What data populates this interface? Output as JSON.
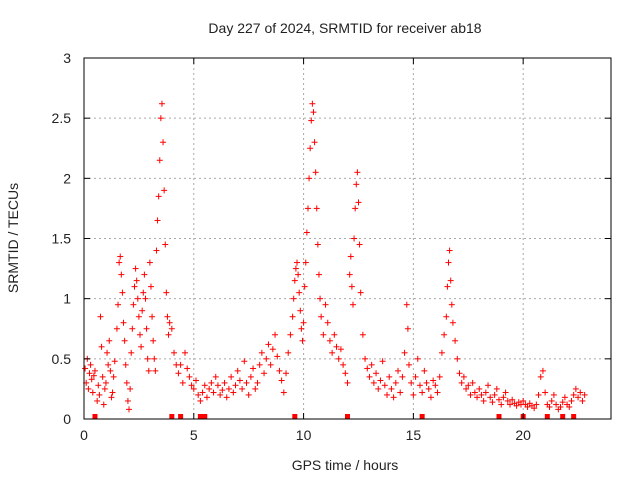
{
  "chart_data": {
    "type": "scatter",
    "title": "Day 227 of 2024, SRMTID for receiver ab18",
    "xlabel": "GPS time / hours",
    "ylabel": "SRMTID / TECUs",
    "xlim": [
      0,
      24
    ],
    "ylim": [
      0,
      3
    ],
    "x_ticks": [
      0,
      5,
      10,
      15,
      20
    ],
    "x_tick_labels": [
      "0",
      "5",
      "10",
      "15",
      "20"
    ],
    "y_ticks": [
      0,
      0.5,
      1,
      1.5,
      2,
      2.5,
      3
    ],
    "y_tick_labels": [
      "0",
      "0.5",
      "1",
      "1.5",
      "2",
      "2.5",
      "3"
    ],
    "grid": true,
    "marker": "+",
    "color": "#ff0000",
    "series": [
      {
        "name": "SRMTID",
        "points": [
          [
            0.05,
            0.42
          ],
          [
            0.1,
            0.3
          ],
          [
            0.15,
            0.5
          ],
          [
            0.2,
            0.25
          ],
          [
            0.25,
            0.38
          ],
          [
            0.3,
            0.45
          ],
          [
            0.35,
            0.33
          ],
          [
            0.4,
            0.22
          ],
          [
            0.45,
            0.36
          ],
          [
            0.5,
            0.4
          ],
          [
            0.6,
            0.15
          ],
          [
            0.65,
            0.28
          ],
          [
            0.7,
            0.2
          ],
          [
            0.75,
            0.85
          ],
          [
            0.8,
            0.6
          ],
          [
            0.85,
            0.35
          ],
          [
            0.9,
            0.12
          ],
          [
            0.95,
            0.25
          ],
          [
            1.0,
            0.3
          ],
          [
            1.05,
            0.55
          ],
          [
            1.1,
            0.45
          ],
          [
            1.15,
            0.65
          ],
          [
            1.2,
            0.4
          ],
          [
            1.25,
            0.18
          ],
          [
            1.3,
            0.22
          ],
          [
            1.35,
            0.35
          ],
          [
            1.4,
            0.48
          ],
          [
            1.5,
            0.75
          ],
          [
            1.55,
            0.95
          ],
          [
            1.6,
            1.3
          ],
          [
            1.65,
            1.35
          ],
          [
            1.7,
            1.2
          ],
          [
            1.75,
            1.05
          ],
          [
            1.8,
            0.8
          ],
          [
            1.85,
            0.65
          ],
          [
            1.9,
            0.45
          ],
          [
            1.95,
            0.3
          ],
          [
            2.0,
            0.15
          ],
          [
            2.05,
            0.08
          ],
          [
            2.1,
            0.25
          ],
          [
            2.15,
            0.55
          ],
          [
            2.2,
            0.75
          ],
          [
            2.25,
            0.95
          ],
          [
            2.3,
            1.1
          ],
          [
            2.35,
            1.25
          ],
          [
            2.4,
            1.15
          ],
          [
            2.45,
            1.0
          ],
          [
            2.5,
            0.85
          ],
          [
            2.55,
            0.7
          ],
          [
            2.6,
            0.6
          ],
          [
            2.65,
            0.9
          ],
          [
            2.7,
            1.05
          ],
          [
            2.75,
            1.2
          ],
          [
            2.8,
            1.0
          ],
          [
            2.85,
            0.75
          ],
          [
            2.9,
            0.5
          ],
          [
            2.95,
            0.4
          ],
          [
            3.0,
            1.3
          ],
          [
            3.05,
            1.1
          ],
          [
            3.1,
            0.85
          ],
          [
            3.15,
            0.65
          ],
          [
            3.2,
            0.5
          ],
          [
            3.25,
            0.4
          ],
          [
            3.3,
            1.4
          ],
          [
            3.35,
            1.65
          ],
          [
            3.4,
            1.85
          ],
          [
            3.45,
            2.15
          ],
          [
            3.5,
            2.5
          ],
          [
            3.55,
            2.62
          ],
          [
            3.6,
            2.3
          ],
          [
            3.65,
            1.9
          ],
          [
            3.7,
            1.45
          ],
          [
            3.75,
            1.05
          ],
          [
            3.8,
            0.85
          ],
          [
            3.85,
            0.7
          ],
          [
            3.9,
            0.8
          ],
          [
            4.0,
            0.75
          ],
          [
            4.1,
            0.55
          ],
          [
            4.2,
            0.45
          ],
          [
            4.3,
            0.38
          ],
          [
            4.4,
            0.45
          ],
          [
            4.5,
            0.3
          ],
          [
            4.6,
            0.55
          ],
          [
            4.7,
            0.42
          ],
          [
            4.8,
            0.35
          ],
          [
            4.9,
            0.28
          ],
          [
            5.0,
            0.25
          ],
          [
            5.1,
            0.32
          ],
          [
            5.2,
            0.2
          ],
          [
            5.3,
            0.15
          ],
          [
            5.4,
            0.22
          ],
          [
            5.5,
            0.28
          ],
          [
            5.6,
            0.18
          ],
          [
            5.7,
            0.25
          ],
          [
            5.8,
            0.3
          ],
          [
            5.9,
            0.22
          ],
          [
            6.0,
            0.35
          ],
          [
            6.1,
            0.28
          ],
          [
            6.2,
            0.2
          ],
          [
            6.3,
            0.24
          ],
          [
            6.4,
            0.3
          ],
          [
            6.5,
            0.18
          ],
          [
            6.6,
            0.25
          ],
          [
            6.7,
            0.35
          ],
          [
            6.8,
            0.22
          ],
          [
            6.9,
            0.28
          ],
          [
            7.0,
            0.4
          ],
          [
            7.1,
            0.32
          ],
          [
            7.2,
            0.25
          ],
          [
            7.3,
            0.48
          ],
          [
            7.4,
            0.3
          ],
          [
            7.5,
            0.2
          ],
          [
            7.6,
            0.35
          ],
          [
            7.7,
            0.42
          ],
          [
            7.8,
            0.25
          ],
          [
            7.9,
            0.3
          ],
          [
            8.0,
            0.45
          ],
          [
            8.1,
            0.55
          ],
          [
            8.2,
            0.38
          ],
          [
            8.3,
            0.5
          ],
          [
            8.4,
            0.62
          ],
          [
            8.5,
            0.45
          ],
          [
            8.6,
            0.58
          ],
          [
            8.7,
            0.7
          ],
          [
            8.8,
            0.52
          ],
          [
            8.9,
            0.4
          ],
          [
            9.0,
            0.32
          ],
          [
            9.1,
            0.22
          ],
          [
            9.2,
            0.38
          ],
          [
            9.3,
            0.55
          ],
          [
            9.4,
            0.7
          ],
          [
            9.5,
            0.85
          ],
          [
            9.55,
            1.0
          ],
          [
            9.6,
            1.15
          ],
          [
            9.65,
            1.25
          ],
          [
            9.7,
            1.3
          ],
          [
            9.75,
            1.2
          ],
          [
            9.8,
            1.05
          ],
          [
            9.85,
            0.9
          ],
          [
            9.9,
            0.75
          ],
          [
            9.95,
            0.65
          ],
          [
            10.0,
            0.8
          ],
          [
            10.05,
            1.1
          ],
          [
            10.1,
            1.3
          ],
          [
            10.15,
            1.55
          ],
          [
            10.2,
            1.75
          ],
          [
            10.25,
            2.0
          ],
          [
            10.3,
            2.25
          ],
          [
            10.35,
            2.48
          ],
          [
            10.4,
            2.62
          ],
          [
            10.45,
            2.55
          ],
          [
            10.5,
            2.3
          ],
          [
            10.55,
            2.05
          ],
          [
            10.6,
            1.75
          ],
          [
            10.65,
            1.45
          ],
          [
            10.7,
            1.2
          ],
          [
            10.75,
            1.0
          ],
          [
            10.8,
            0.85
          ],
          [
            10.9,
            0.7
          ],
          [
            11.0,
            0.95
          ],
          [
            11.1,
            0.8
          ],
          [
            11.2,
            0.65
          ],
          [
            11.3,
            0.55
          ],
          [
            11.4,
            0.7
          ],
          [
            11.5,
            0.6
          ],
          [
            11.6,
            0.5
          ],
          [
            11.7,
            0.58
          ],
          [
            11.8,
            0.45
          ],
          [
            11.9,
            0.38
          ],
          [
            12.0,
            0.3
          ],
          [
            12.1,
            1.2
          ],
          [
            12.15,
            1.35
          ],
          [
            12.2,
            1.1
          ],
          [
            12.25,
            0.95
          ],
          [
            12.3,
            1.5
          ],
          [
            12.35,
            1.75
          ],
          [
            12.4,
            1.95
          ],
          [
            12.45,
            2.05
          ],
          [
            12.5,
            1.8
          ],
          [
            12.55,
            1.45
          ],
          [
            12.6,
            1.05
          ],
          [
            12.7,
            0.7
          ],
          [
            12.8,
            0.5
          ],
          [
            12.9,
            0.42
          ],
          [
            13.0,
            0.35
          ],
          [
            13.1,
            0.45
          ],
          [
            13.2,
            0.3
          ],
          [
            13.3,
            0.38
          ],
          [
            13.4,
            0.25
          ],
          [
            13.5,
            0.32
          ],
          [
            13.6,
            0.48
          ],
          [
            13.7,
            0.28
          ],
          [
            13.8,
            0.2
          ],
          [
            13.9,
            0.35
          ],
          [
            14.0,
            0.25
          ],
          [
            14.1,
            0.18
          ],
          [
            14.2,
            0.3
          ],
          [
            14.3,
            0.4
          ],
          [
            14.4,
            0.22
          ],
          [
            14.5,
            0.35
          ],
          [
            14.6,
            0.55
          ],
          [
            14.7,
            0.95
          ],
          [
            14.75,
            0.75
          ],
          [
            14.8,
            0.45
          ],
          [
            14.9,
            0.3
          ],
          [
            15.0,
            0.2
          ],
          [
            15.1,
            0.35
          ],
          [
            15.2,
            0.5
          ],
          [
            15.3,
            0.28
          ],
          [
            15.4,
            0.22
          ],
          [
            15.5,
            0.4
          ],
          [
            15.6,
            0.3
          ],
          [
            15.7,
            0.25
          ],
          [
            15.8,
            0.18
          ],
          [
            15.9,
            0.32
          ],
          [
            16.0,
            0.28
          ],
          [
            16.1,
            0.22
          ],
          [
            16.2,
            0.35
          ],
          [
            16.3,
            0.55
          ],
          [
            16.4,
            0.7
          ],
          [
            16.5,
            0.85
          ],
          [
            16.55,
            1.1
          ],
          [
            16.6,
            1.3
          ],
          [
            16.65,
            1.4
          ],
          [
            16.7,
            1.15
          ],
          [
            16.75,
            0.95
          ],
          [
            16.8,
            0.8
          ],
          [
            16.9,
            0.65
          ],
          [
            17.0,
            0.5
          ],
          [
            17.1,
            0.38
          ],
          [
            17.2,
            0.3
          ],
          [
            17.3,
            0.35
          ],
          [
            17.4,
            0.25
          ],
          [
            17.5,
            0.28
          ],
          [
            17.6,
            0.2
          ],
          [
            17.7,
            0.3
          ],
          [
            17.8,
            0.22
          ],
          [
            17.9,
            0.18
          ],
          [
            18.0,
            0.25
          ],
          [
            18.1,
            0.2
          ],
          [
            18.2,
            0.15
          ],
          [
            18.3,
            0.22
          ],
          [
            18.4,
            0.28
          ],
          [
            18.5,
            0.18
          ],
          [
            18.6,
            0.14
          ],
          [
            18.7,
            0.2
          ],
          [
            18.8,
            0.25
          ],
          [
            18.9,
            0.16
          ],
          [
            19.0,
            0.12
          ],
          [
            19.1,
            0.18
          ],
          [
            19.2,
            0.22
          ],
          [
            19.3,
            0.15
          ],
          [
            19.4,
            0.12
          ],
          [
            19.5,
            0.16
          ],
          [
            19.6,
            0.13
          ],
          [
            19.7,
            0.11
          ],
          [
            19.8,
            0.14
          ],
          [
            19.9,
            0.12
          ],
          [
            20.0,
            0.15
          ],
          [
            20.1,
            0.12
          ],
          [
            20.2,
            0.1
          ],
          [
            20.3,
            0.13
          ],
          [
            20.4,
            0.11
          ],
          [
            20.5,
            0.09
          ],
          [
            20.6,
            0.12
          ],
          [
            20.7,
            0.2
          ],
          [
            20.8,
            0.35
          ],
          [
            20.9,
            0.4
          ],
          [
            21.0,
            0.22
          ],
          [
            21.1,
            0.12
          ],
          [
            21.2,
            0.1
          ],
          [
            21.3,
            0.15
          ],
          [
            21.4,
            0.2
          ],
          [
            21.5,
            0.12
          ],
          [
            21.6,
            0.08
          ],
          [
            21.7,
            0.1
          ],
          [
            21.8,
            0.14
          ],
          [
            21.9,
            0.18
          ],
          [
            22.0,
            0.12
          ],
          [
            22.1,
            0.1
          ],
          [
            22.2,
            0.15
          ],
          [
            22.3,
            0.2
          ],
          [
            22.4,
            0.25
          ],
          [
            22.5,
            0.18
          ],
          [
            22.6,
            0.22
          ],
          [
            22.7,
            0.15
          ],
          [
            22.8,
            0.2
          ]
        ]
      }
    ],
    "baseline_markers": [
      0.5,
      4.0,
      4.4,
      5.3,
      5.5,
      9.6,
      12.0,
      15.4,
      18.9,
      20.0,
      21.1,
      21.8,
      22.3
    ]
  }
}
